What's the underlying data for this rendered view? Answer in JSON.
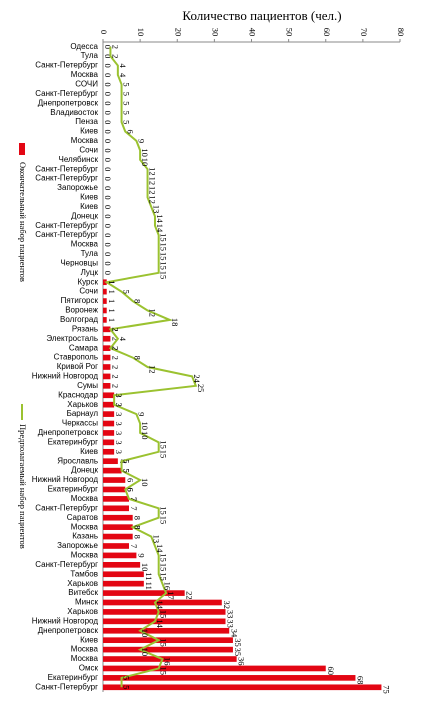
{
  "chart_data": {
    "type": "bar",
    "title": "Количество пациентов (чел.)",
    "categories": [
      "Одесса",
      "Тула",
      "Санкт-Петербург",
      "Москва",
      "СОЧИ",
      "Санкт-Петербург",
      "Днепропетровск",
      "Владивосток",
      "Пенза",
      "Киев",
      "Москва",
      "Сочи",
      "Челябинск",
      "Санкт-Петербург",
      "Санкт-Петербург",
      "Запорожье",
      "Киев",
      "Киев",
      "Донецк",
      "Санкт-Петербург",
      "Санкт-Петербург",
      "Москва",
      "Тула",
      "Черновцы",
      "Луцк",
      "Курск",
      "Сочи",
      "Пятигорск",
      "Воронеж",
      "Волгоград",
      "Рязань",
      "Электросталь",
      "Самара",
      "Ставрополь",
      "Кривой Рог",
      "Нижний Новгород",
      "Сумы",
      "Краснодар",
      "Харьков",
      "Барнаул",
      "Черкассы",
      "Днепропетровск",
      "Екатеринбург",
      "Киев",
      "Ярославль",
      "Донецк",
      "Нижний Новгород",
      "Екатеринбург",
      "Москва",
      "Санкт-Петербург",
      "Саратов",
      "Москва",
      "Казань",
      "Запорожье",
      "Москва",
      "Санкт-Петербург",
      "Тамбов",
      "Харьков",
      "Витебск",
      "Минск",
      "Харьков",
      "Нижний Новгород",
      "Днепропетровск",
      "Киев",
      "Москва",
      "Москва",
      "Омск",
      "Екатеринбург",
      "Санкт-Петербург"
    ],
    "series": [
      {
        "name": "Окончательный набор пациентов",
        "color": "#e30613",
        "kind": "bar",
        "values": [
          0,
          0,
          0,
          0,
          0,
          0,
          0,
          0,
          0,
          0,
          0,
          0,
          0,
          0,
          0,
          0,
          0,
          0,
          0,
          0,
          0,
          0,
          0,
          0,
          0,
          1,
          1,
          1,
          1,
          1,
          2,
          2,
          2,
          2,
          2,
          2,
          2,
          3,
          3,
          3,
          3,
          3,
          3,
          3,
          4,
          5,
          6,
          6,
          7,
          7,
          8,
          8,
          8,
          7,
          9,
          10,
          11,
          11,
          22,
          32,
          33,
          33,
          34,
          35,
          35,
          36,
          60,
          68,
          75
        ]
      },
      {
        "name": "Предполагаемый набор пациентов",
        "color": "#9bc230",
        "kind": "line",
        "values": [
          2,
          2,
          4,
          4,
          5,
          5,
          5,
          5,
          5,
          6,
          9,
          10,
          10,
          12,
          12,
          12,
          12,
          13,
          14,
          14,
          15,
          15,
          15,
          15,
          15,
          1,
          5,
          8,
          12,
          18,
          2,
          4,
          2,
          8,
          12,
          24,
          25,
          3,
          3,
          9,
          10,
          10,
          15,
          15,
          5,
          5,
          10,
          6,
          7,
          15,
          15,
          8,
          13,
          14,
          15,
          15,
          15,
          16,
          17,
          14,
          15,
          14,
          10,
          15,
          10,
          16,
          15,
          5,
          5
        ]
      }
    ],
    "xlim": [
      0,
      80
    ],
    "xticks": [
      0,
      10,
      20,
      30,
      40,
      50,
      60,
      70,
      80
    ]
  }
}
